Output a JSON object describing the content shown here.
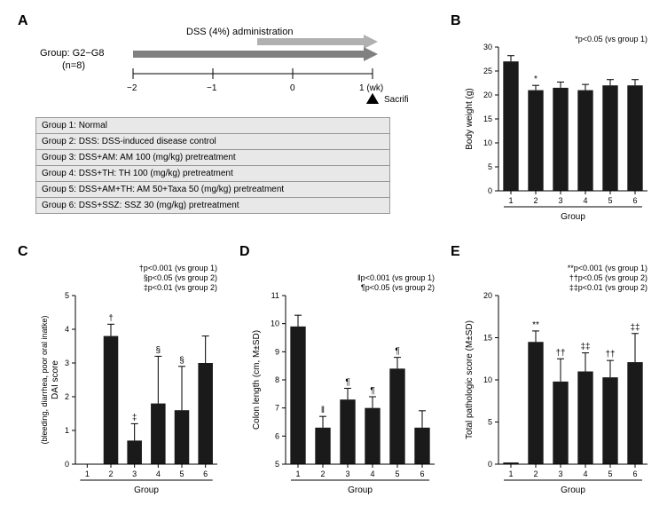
{
  "labels": {
    "A": "A",
    "B": "B",
    "C": "C",
    "D": "D",
    "E": "E"
  },
  "panelA": {
    "dss_arrow": "DSS (4%) administration",
    "group_label": "Group: G2−G8",
    "n_label": "(n=8)",
    "weeks": [
      "−2",
      "−1",
      "0",
      "1 (wk)"
    ],
    "sacrifice": "Sacrifice",
    "groups": [
      "Group 1: Normal",
      "Group 2: DSS: DSS-induced disease control",
      "Group 3: DSS+AM: AM 100 (mg/kg) pretreatment",
      "Group 4: DSS+TH: TH 100 (mg/kg) pretreatment",
      "Group 5: DSS+AM+TH: AM 50+Taxa 50 (mg/kg) pretreatment",
      "Group 6: DSS+SSZ: SSZ 30 (mg/kg) pretreatment"
    ],
    "arrow_color_light": "#b0b0b0",
    "arrow_color_dark": "#808080"
  },
  "panelB": {
    "ylabel": "Body weight (g)",
    "xlabel": "Group",
    "ylim": [
      0,
      30
    ],
    "ytick_step": 5,
    "categories": [
      "1",
      "2",
      "3",
      "4",
      "5",
      "6"
    ],
    "values": [
      27,
      21,
      21.5,
      21,
      22,
      22
    ],
    "errors": [
      1.2,
      1,
      1.2,
      1.2,
      1.2,
      1.2
    ],
    "sig": [
      "",
      "*",
      "",
      "",
      "",
      ""
    ],
    "legend": "*p<0.05 (vs group 1)",
    "bar_color": "#1a1a1a"
  },
  "panelC": {
    "ylabel1": "DAI score",
    "ylabel2": "(bleeding, diarrhea, poor oral inatke)",
    "xlabel": "Group",
    "ylim": [
      0,
      5
    ],
    "ytick_step": 1,
    "categories": [
      "1",
      "2",
      "3",
      "4",
      "5",
      "6"
    ],
    "values": [
      0,
      3.8,
      0.7,
      1.8,
      1.6,
      3.0
    ],
    "errors": [
      0,
      0.35,
      0.5,
      1.4,
      1.3,
      0.8
    ],
    "sig": [
      "",
      "†",
      "‡",
      "§",
      "§",
      ""
    ],
    "legend_lines": [
      "†p<0.001 (vs group 1)",
      "§p<0.05 (vs group 2)",
      "‡p<0.01 (vs group 2)"
    ],
    "bar_color": "#1a1a1a"
  },
  "panelD": {
    "ylabel": "Colon length (cm, M±SD)",
    "xlabel": "Group",
    "ylim": [
      5,
      11
    ],
    "ytick_step": 1,
    "categories": [
      "1",
      "2",
      "3",
      "4",
      "5",
      "6"
    ],
    "values": [
      9.9,
      6.3,
      7.3,
      7.0,
      8.4,
      6.3
    ],
    "errors": [
      0.4,
      0.4,
      0.4,
      0.4,
      0.4,
      0.6
    ],
    "sig": [
      "",
      "‖",
      "¶",
      "¶",
      "¶",
      ""
    ],
    "legend_lines": [
      "‖p<0.001 (vs group 1)",
      "¶p<0.05 (vs group 2)"
    ],
    "bar_color": "#1a1a1a"
  },
  "panelE": {
    "ylabel": "Total pathologic score (M±SD)",
    "xlabel": "Group",
    "ylim": [
      0,
      20
    ],
    "ytick_step": 5,
    "categories": [
      "1",
      "2",
      "3",
      "4",
      "5",
      "6"
    ],
    "values": [
      0.2,
      14.5,
      9.8,
      11,
      10.3,
      12.1
    ],
    "errors": [
      0,
      1.3,
      2.7,
      2.2,
      2,
      3.4
    ],
    "sig": [
      "",
      "**",
      "††",
      "‡‡",
      "††",
      "‡‡"
    ],
    "legend_lines": [
      "**p<0.001 (vs group 1)",
      "††p<0.05 (vs group 2)",
      "‡‡p<0.01 (vs group 2)"
    ],
    "bar_color": "#1a1a1a"
  },
  "colors": {
    "bg": "#ffffff",
    "axis": "#000000",
    "text": "#000000",
    "table_bg": "#e8e8e8",
    "table_border": "#999999"
  },
  "font_sizes": {
    "panel_label": 16,
    "axis_label": 10,
    "tick": 9,
    "sig": 10,
    "legend": 9,
    "table": 10
  }
}
